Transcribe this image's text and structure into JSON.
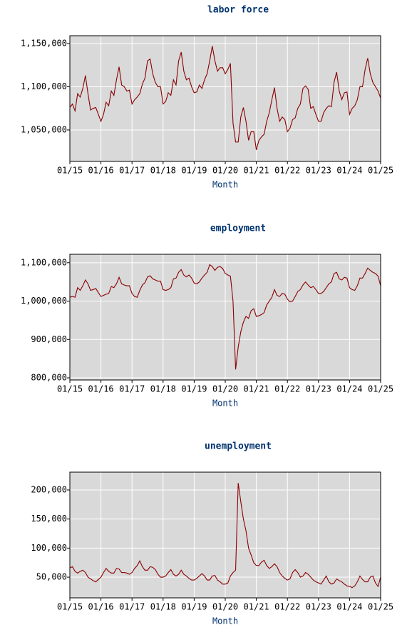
{
  "chart_data": [
    {
      "type": "line",
      "title": "labor force",
      "xlabel": "Month",
      "x": [
        "01/15",
        "02/15",
        "03/15",
        "04/15",
        "05/15",
        "06/15",
        "07/15",
        "08/15",
        "09/15",
        "10/15",
        "11/15",
        "12/15",
        "01/16",
        "02/16",
        "03/16",
        "04/16",
        "05/16",
        "06/16",
        "07/16",
        "08/16",
        "09/16",
        "10/16",
        "11/16",
        "12/16",
        "01/17",
        "02/17",
        "03/17",
        "04/17",
        "05/17",
        "06/17",
        "07/17",
        "08/17",
        "09/17",
        "10/17",
        "11/17",
        "12/17",
        "01/18",
        "02/18",
        "03/18",
        "04/18",
        "05/18",
        "06/18",
        "07/18",
        "08/18",
        "09/18",
        "10/18",
        "11/18",
        "12/18",
        "01/19",
        "02/19",
        "03/19",
        "04/19",
        "05/19",
        "06/19",
        "07/19",
        "08/19",
        "09/19",
        "10/19",
        "11/19",
        "12/19",
        "01/20",
        "02/20",
        "03/20",
        "04/20",
        "05/20",
        "06/20",
        "07/20",
        "08/20",
        "09/20",
        "10/20",
        "11/20",
        "12/20",
        "01/21",
        "02/21",
        "03/21",
        "04/21",
        "05/21",
        "06/21",
        "07/21",
        "08/21",
        "09/21",
        "10/21",
        "11/21",
        "12/21",
        "01/22",
        "02/22",
        "03/22",
        "04/22",
        "05/22",
        "06/22",
        "07/22",
        "08/22",
        "09/22",
        "10/22",
        "11/22",
        "12/22",
        "01/23",
        "02/23",
        "03/23",
        "04/23",
        "05/23",
        "06/23",
        "07/23",
        "08/23",
        "09/23",
        "10/23",
        "11/23",
        "12/23",
        "01/24",
        "02/24",
        "03/24",
        "04/24",
        "05/24",
        "06/24",
        "07/24",
        "08/24",
        "09/24",
        "10/24",
        "11/24",
        "12/24",
        "01/25"
      ],
      "xticks": [
        "01/15",
        "01/16",
        "01/17",
        "01/18",
        "01/19",
        "01/20",
        "01/21",
        "01/22",
        "01/23",
        "01/24",
        "01/25"
      ],
      "color": "#8b0000",
      "values": [
        1076000,
        1080000,
        1072000,
        1092000,
        1088000,
        1098000,
        1113000,
        1092000,
        1073000,
        1075000,
        1076000,
        1068000,
        1060000,
        1068000,
        1082000,
        1078000,
        1095000,
        1090000,
        1108000,
        1123000,
        1102000,
        1100000,
        1095000,
        1096000,
        1080000,
        1085000,
        1088000,
        1092000,
        1103000,
        1110000,
        1130000,
        1132000,
        1115000,
        1105000,
        1100000,
        1100000,
        1080000,
        1083000,
        1093000,
        1090000,
        1108000,
        1102000,
        1130000,
        1140000,
        1118000,
        1108000,
        1110000,
        1100000,
        1093000,
        1094000,
        1102000,
        1098000,
        1108000,
        1115000,
        1130000,
        1147000,
        1130000,
        1118000,
        1122000,
        1122000,
        1115000,
        1120000,
        1127000,
        1058000,
        1036000,
        1036000,
        1065000,
        1076000,
        1060000,
        1038000,
        1048000,
        1048000,
        1027000,
        1038000,
        1042000,
        1045000,
        1060000,
        1070000,
        1085000,
        1099000,
        1075000,
        1060000,
        1065000,
        1062000,
        1048000,
        1052000,
        1062000,
        1064000,
        1075000,
        1080000,
        1098000,
        1101000,
        1097000,
        1075000,
        1077000,
        1068000,
        1060000,
        1060000,
        1070000,
        1075000,
        1078000,
        1077000,
        1105000,
        1117000,
        1095000,
        1085000,
        1093000,
        1094000,
        1068000,
        1075000,
        1078000,
        1085000,
        1100000,
        1100000,
        1120000,
        1133000,
        1115000,
        1105000,
        1100000,
        1095000,
        1087000
      ],
      "ylim": [
        1013600,
        1159000
      ],
      "yticks": [
        {
          "value": 1050000,
          "label": "1,050,000"
        },
        {
          "value": 1100000,
          "label": "1,100,000"
        },
        {
          "value": 1150000,
          "label": "1,150,000"
        }
      ],
      "grid": true
    },
    {
      "type": "line",
      "title": "employment",
      "xlabel": "Month",
      "x": [
        "01/15",
        "02/15",
        "03/15",
        "04/15",
        "05/15",
        "06/15",
        "07/15",
        "08/15",
        "09/15",
        "10/15",
        "11/15",
        "12/15",
        "01/16",
        "02/16",
        "03/16",
        "04/16",
        "05/16",
        "06/16",
        "07/16",
        "08/16",
        "09/16",
        "10/16",
        "11/16",
        "12/16",
        "01/17",
        "02/17",
        "03/17",
        "04/17",
        "05/17",
        "06/17",
        "07/17",
        "08/17",
        "09/17",
        "10/17",
        "11/17",
        "12/17",
        "01/18",
        "02/18",
        "03/18",
        "04/18",
        "05/18",
        "06/18",
        "07/18",
        "08/18",
        "09/18",
        "10/18",
        "11/18",
        "12/18",
        "01/19",
        "02/19",
        "03/19",
        "04/19",
        "05/19",
        "06/19",
        "07/19",
        "08/19",
        "09/19",
        "10/19",
        "11/19",
        "12/19",
        "01/20",
        "02/20",
        "03/20",
        "04/20",
        "05/20",
        "06/20",
        "07/20",
        "08/20",
        "09/20",
        "10/20",
        "11/20",
        "12/20",
        "01/21",
        "02/21",
        "03/21",
        "04/21",
        "05/21",
        "06/21",
        "07/21",
        "08/21",
        "09/21",
        "10/21",
        "11/21",
        "12/21",
        "01/22",
        "02/22",
        "03/22",
        "04/22",
        "05/22",
        "06/22",
        "07/22",
        "08/22",
        "09/22",
        "10/22",
        "11/22",
        "12/22",
        "01/23",
        "02/23",
        "03/23",
        "04/23",
        "05/23",
        "06/23",
        "07/23",
        "08/23",
        "09/23",
        "10/23",
        "11/23",
        "12/23",
        "01/24",
        "02/24",
        "03/24",
        "04/24",
        "05/24",
        "06/24",
        "07/24",
        "08/24",
        "09/24",
        "10/24",
        "11/24",
        "12/24",
        "01/25"
      ],
      "xticks": [
        "01/15",
        "01/16",
        "01/17",
        "01/18",
        "01/19",
        "01/20",
        "01/21",
        "01/22",
        "01/23",
        "01/24",
        "01/25"
      ],
      "color": "#8b0000",
      "values": [
        1010000,
        1012000,
        1010000,
        1035000,
        1028000,
        1040000,
        1055000,
        1045000,
        1028000,
        1030000,
        1033000,
        1022000,
        1012000,
        1015000,
        1018000,
        1020000,
        1038000,
        1035000,
        1045000,
        1062000,
        1045000,
        1042000,
        1040000,
        1040000,
        1020000,
        1012000,
        1010000,
        1028000,
        1042000,
        1048000,
        1063000,
        1066000,
        1058000,
        1055000,
        1052000,
        1052000,
        1030000,
        1028000,
        1030000,
        1035000,
        1058000,
        1060000,
        1075000,
        1082000,
        1068000,
        1063000,
        1068000,
        1060000,
        1047000,
        1045000,
        1050000,
        1060000,
        1068000,
        1075000,
        1095000,
        1090000,
        1080000,
        1088000,
        1090000,
        1085000,
        1072000,
        1068000,
        1065000,
        1000000,
        822000,
        880000,
        920000,
        945000,
        960000,
        955000,
        975000,
        980000,
        960000,
        962000,
        965000,
        970000,
        990000,
        1000000,
        1010000,
        1030000,
        1015000,
        1012000,
        1020000,
        1018000,
        1005000,
        998000,
        1000000,
        1012000,
        1025000,
        1030000,
        1042000,
        1050000,
        1042000,
        1035000,
        1038000,
        1030000,
        1020000,
        1020000,
        1025000,
        1035000,
        1045000,
        1050000,
        1072000,
        1075000,
        1058000,
        1055000,
        1062000,
        1060000,
        1035000,
        1030000,
        1028000,
        1040000,
        1060000,
        1060000,
        1072000,
        1086000,
        1080000,
        1075000,
        1072000,
        1065000,
        1040000
      ],
      "ylim": [
        794400,
        1122000
      ],
      "yticks": [
        {
          "value": 800000,
          "label": "800,000"
        },
        {
          "value": 900000,
          "label": "900,000"
        },
        {
          "value": 1000000,
          "label": "1,000,000"
        },
        {
          "value": 1100000,
          "label": "1,100,000"
        }
      ],
      "grid": true
    },
    {
      "type": "line",
      "title": "unemployment",
      "xlabel": "Month",
      "x": [
        "01/15",
        "02/15",
        "03/15",
        "04/15",
        "05/15",
        "06/15",
        "07/15",
        "08/15",
        "09/15",
        "10/15",
        "11/15",
        "12/15",
        "01/16",
        "02/16",
        "03/16",
        "04/16",
        "05/16",
        "06/16",
        "07/16",
        "08/16",
        "09/16",
        "10/16",
        "11/16",
        "12/16",
        "01/17",
        "02/17",
        "03/17",
        "04/17",
        "05/17",
        "06/17",
        "07/17",
        "08/17",
        "09/17",
        "10/17",
        "11/17",
        "12/17",
        "01/18",
        "02/18",
        "03/18",
        "04/18",
        "05/18",
        "06/18",
        "07/18",
        "08/18",
        "09/18",
        "10/18",
        "11/18",
        "12/18",
        "01/19",
        "02/19",
        "03/19",
        "04/19",
        "05/19",
        "06/19",
        "07/19",
        "08/19",
        "09/19",
        "10/19",
        "11/19",
        "12/19",
        "01/20",
        "02/20",
        "03/20",
        "04/20",
        "05/20",
        "06/20",
        "07/20",
        "08/20",
        "09/20",
        "10/20",
        "11/20",
        "12/20",
        "01/21",
        "02/21",
        "03/21",
        "04/21",
        "05/21",
        "06/21",
        "07/21",
        "08/21",
        "09/21",
        "10/21",
        "11/21",
        "12/21",
        "01/22",
        "02/22",
        "03/22",
        "04/22",
        "05/22",
        "06/22",
        "07/22",
        "08/22",
        "09/22",
        "10/22",
        "11/22",
        "12/22",
        "01/23",
        "02/23",
        "03/23",
        "04/23",
        "05/23",
        "06/23",
        "07/23",
        "08/23",
        "09/23",
        "10/23",
        "11/23",
        "12/23",
        "01/24",
        "02/24",
        "03/24",
        "04/24",
        "05/24",
        "06/24",
        "07/24",
        "08/24",
        "09/24",
        "10/24",
        "11/24",
        "12/24",
        "01/25"
      ],
      "xticks": [
        "01/15",
        "01/16",
        "01/17",
        "01/18",
        "01/19",
        "01/20",
        "01/21",
        "01/22",
        "01/23",
        "01/24",
        "01/25"
      ],
      "color": "#8b0000",
      "values": [
        66000,
        68000,
        60000,
        57000,
        60000,
        62000,
        58000,
        50000,
        47000,
        44000,
        42000,
        46000,
        50000,
        58000,
        65000,
        60000,
        57000,
        57000,
        65000,
        64000,
        58000,
        58000,
        57000,
        55000,
        58000,
        65000,
        70000,
        78000,
        68000,
        62000,
        62000,
        68000,
        67000,
        63000,
        55000,
        50000,
        50000,
        52000,
        58000,
        63000,
        55000,
        52000,
        55000,
        62000,
        55000,
        52000,
        48000,
        45000,
        45000,
        48000,
        52000,
        56000,
        52000,
        45000,
        45000,
        52000,
        53000,
        45000,
        42000,
        38000,
        38000,
        40000,
        52000,
        58000,
        62000,
        212000,
        180000,
        150000,
        130000,
        100000,
        88000,
        75000,
        70000,
        70000,
        76000,
        79000,
        70000,
        65000,
        68000,
        73000,
        68000,
        58000,
        52000,
        48000,
        45000,
        47000,
        58000,
        63000,
        58000,
        50000,
        52000,
        58000,
        55000,
        50000,
        45000,
        42000,
        40000,
        38000,
        45000,
        52000,
        42000,
        38000,
        40000,
        47000,
        44000,
        42000,
        38000,
        35000,
        34000,
        32000,
        35000,
        42000,
        52000,
        46000,
        42000,
        42000,
        50000,
        52000,
        40000,
        34000,
        50000
      ],
      "ylim": [
        14400,
        230700
      ],
      "yticks": [
        {
          "value": 50000,
          "label": "50,000"
        },
        {
          "value": 100000,
          "label": "100,000"
        },
        {
          "value": 150000,
          "label": "150,000"
        },
        {
          "value": 200000,
          "label": "200,000"
        }
      ],
      "grid": true
    }
  ]
}
